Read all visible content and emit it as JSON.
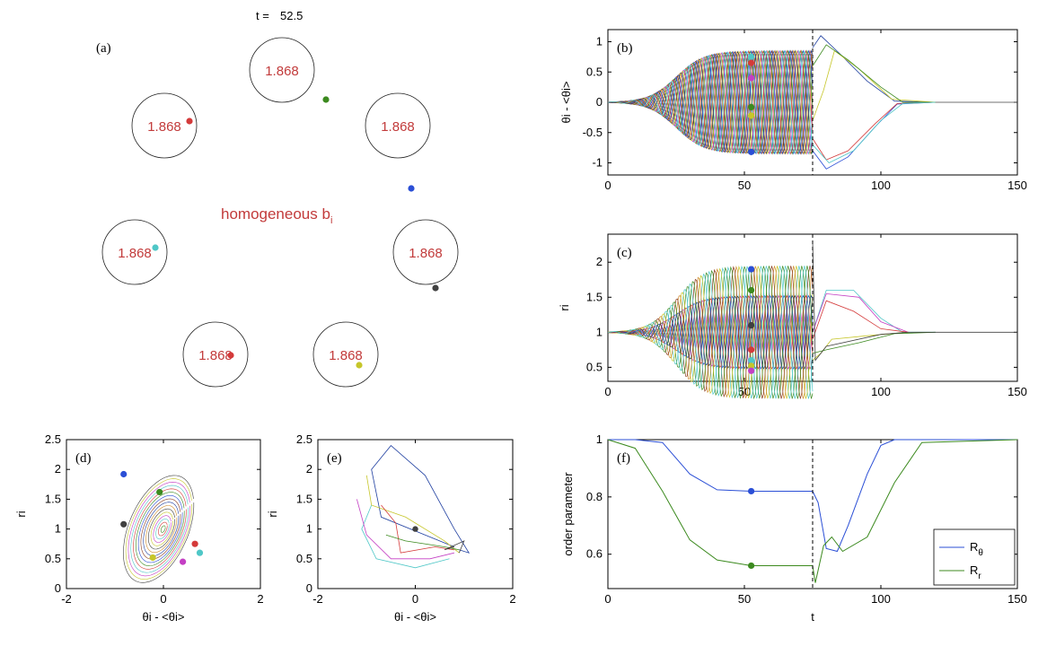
{
  "panel_a": {
    "label": "(a)",
    "time_label": "t =",
    "time_value": "52.5",
    "annotation": "homogeneous b",
    "annotation_sub": "i",
    "circles": [
      {
        "value": "1.868"
      },
      {
        "value": "1.868"
      },
      {
        "value": "1.868"
      },
      {
        "value": "1.868"
      },
      {
        "value": "1.868"
      },
      {
        "value": "1.868"
      }
    ]
  },
  "colors": {
    "blue": "#2b4fd6",
    "green": "#3c8a1f",
    "red": "#d43a3a",
    "cyan": "#4fc7c7",
    "magenta": "#c43fc4",
    "yellow": "#c6c62a",
    "dark": "#404040",
    "orange": "#d08a2a",
    "marker_b_green": "#3c8a1f"
  },
  "chart_data": [
    {
      "id": "b",
      "type": "line",
      "label": "(b)",
      "ylabel": "θ",
      "ylabel_text": "θi - <θi>",
      "xlim": [
        0,
        150
      ],
      "ylim": [
        -1.2,
        1.2
      ],
      "xticks": [
        "0",
        "50",
        "100",
        "150"
      ],
      "yticks": [
        "-1",
        "-0.5",
        "0",
        "0.5",
        "1"
      ],
      "vline": 75,
      "markers": [
        {
          "x": 52.5,
          "y": 0.75,
          "color": "cyan"
        },
        {
          "x": 52.5,
          "y": 0.65,
          "color": "red"
        },
        {
          "x": 52.5,
          "y": 0.4,
          "color": "magenta"
        },
        {
          "x": 52.5,
          "y": -0.08,
          "color": "green"
        },
        {
          "x": 52.5,
          "y": -0.22,
          "color": "yellow"
        },
        {
          "x": 52.5,
          "y": -0.82,
          "color": "blue"
        }
      ]
    },
    {
      "id": "c",
      "type": "line",
      "label": "(c)",
      "ylabel_text": "ri",
      "xlim": [
        0,
        150
      ],
      "ylim": [
        0.3,
        2.4
      ],
      "xticks": [
        "0",
        "50",
        "100",
        "150"
      ],
      "yticks": [
        "0.5",
        "1",
        "1.5",
        "2"
      ],
      "vline": 75,
      "markers": [
        {
          "x": 52.5,
          "y": 1.9,
          "color": "blue"
        },
        {
          "x": 52.5,
          "y": 1.6,
          "color": "green"
        },
        {
          "x": 52.5,
          "y": 1.1,
          "color": "dark"
        },
        {
          "x": 52.5,
          "y": 0.75,
          "color": "red"
        },
        {
          "x": 52.5,
          "y": 0.6,
          "color": "cyan"
        },
        {
          "x": 52.5,
          "y": 0.52,
          "color": "yellow"
        },
        {
          "x": 52.5,
          "y": 0.45,
          "color": "magenta"
        }
      ]
    },
    {
      "id": "d",
      "type": "line",
      "label": "(d)",
      "xlabel_text": "θi - <θi>",
      "ylabel_text": "ri",
      "xlim": [
        -2,
        2
      ],
      "ylim": [
        0,
        2.5
      ],
      "xticks": [
        "-2",
        "0",
        "2"
      ],
      "yticks": [
        "0",
        "0.5",
        "1",
        "1.5",
        "2",
        "2.5"
      ],
      "markers": [
        {
          "x": -0.82,
          "y": 1.92,
          "color": "blue"
        },
        {
          "x": -0.08,
          "y": 1.62,
          "color": "green"
        },
        {
          "x": -0.82,
          "y": 1.08,
          "color": "dark"
        },
        {
          "x": 0.65,
          "y": 0.75,
          "color": "red"
        },
        {
          "x": 0.75,
          "y": 0.6,
          "color": "cyan"
        },
        {
          "x": -0.22,
          "y": 0.52,
          "color": "yellow"
        },
        {
          "x": 0.4,
          "y": 0.45,
          "color": "magenta"
        }
      ]
    },
    {
      "id": "e",
      "type": "line",
      "label": "(e)",
      "xlabel_text": "θi - <θi>",
      "ylabel_text": "ri",
      "xlim": [
        -2,
        2
      ],
      "ylim": [
        0,
        2.5
      ],
      "xticks": [
        "-2",
        "0",
        "2"
      ],
      "yticks": [
        "0",
        "0.5",
        "1",
        "1.5",
        "2",
        "2.5"
      ],
      "markers": [
        {
          "x": 0,
          "y": 1.0,
          "color": "dark"
        }
      ]
    },
    {
      "id": "f",
      "type": "line",
      "label": "(f)",
      "xlabel": "t",
      "ylabel": "order parameter",
      "xlim": [
        0,
        150
      ],
      "ylim": [
        0.48,
        1.0
      ],
      "xticks": [
        "0",
        "50",
        "100",
        "150"
      ],
      "yticks": [
        "0.6",
        "0.8",
        "1"
      ],
      "vline": 75,
      "series": [
        {
          "name": "Rθ",
          "name_main": "R",
          "name_sub": "θ",
          "color": "blue",
          "x": [
            0,
            10,
            20,
            30,
            40,
            52.5,
            60,
            75,
            77,
            80,
            84,
            88,
            95,
            100,
            105,
            150
          ],
          "values": [
            1.0,
            1.0,
            0.99,
            0.88,
            0.825,
            0.82,
            0.82,
            0.82,
            0.78,
            0.62,
            0.61,
            0.7,
            0.88,
            0.98,
            1.0,
            1.0
          ]
        },
        {
          "name": "Rr",
          "name_main": "R",
          "name_sub": "r",
          "color": "green",
          "x": [
            0,
            10,
            20,
            30,
            40,
            52.5,
            60,
            75,
            76,
            79,
            82,
            86,
            95,
            105,
            115,
            150
          ],
          "values": [
            1.0,
            0.97,
            0.82,
            0.65,
            0.58,
            0.56,
            0.56,
            0.56,
            0.5,
            0.63,
            0.66,
            0.61,
            0.66,
            0.85,
            0.99,
            1.0
          ]
        }
      ],
      "markers": [
        {
          "x": 52.5,
          "y": 0.82,
          "color": "blue"
        },
        {
          "x": 52.5,
          "y": 0.56,
          "color": "green"
        }
      ],
      "legend": "bottom-right"
    }
  ]
}
